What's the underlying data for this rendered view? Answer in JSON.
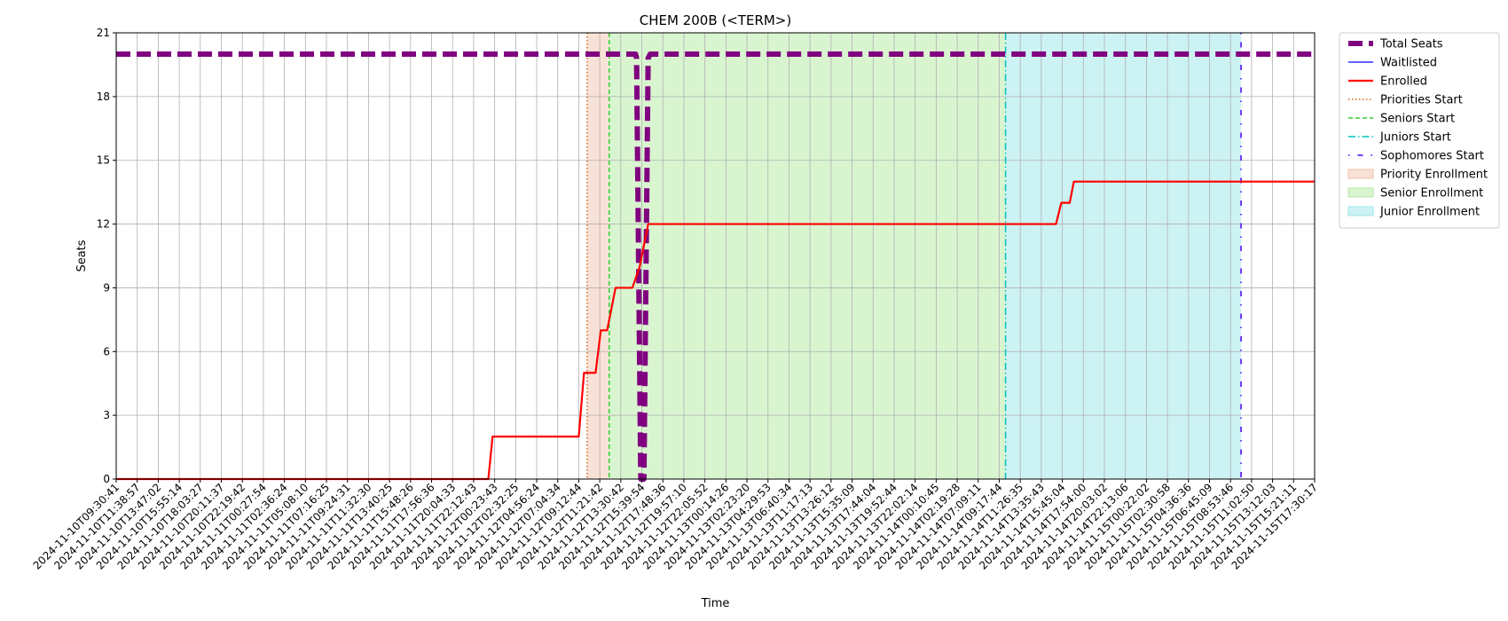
{
  "chart_data": {
    "type": "line",
    "title": "CHEM 200B (<TERM>)",
    "xlabel": "Time",
    "ylabel": "Seats",
    "ylim": [
      0,
      21
    ],
    "yticks": [
      0,
      3,
      6,
      9,
      12,
      15,
      18,
      21
    ],
    "grid": true,
    "legend_position": "outside upper right",
    "categories": [
      "2024-11-10T09:30:41",
      "2024-11-10T11:38:57",
      "2024-11-10T13:47:02",
      "2024-11-10T15:55:14",
      "2024-11-10T18:03:27",
      "2024-11-10T20:11:37",
      "2024-11-10T22:19:42",
      "2024-11-11T00:27:54",
      "2024-11-11T02:36:24",
      "2024-11-11T05:08:10",
      "2024-11-11T07:16:25",
      "2024-11-11T09:24:31",
      "2024-11-11T11:32:30",
      "2024-11-11T13:40:25",
      "2024-11-11T15:48:26",
      "2024-11-11T17:56:36",
      "2024-11-11T20:04:33",
      "2024-11-11T22:12:43",
      "2024-11-12T00:23:43",
      "2024-11-12T02:32:25",
      "2024-11-12T04:56:24",
      "2024-11-12T07:04:34",
      "2024-11-12T09:12:44",
      "2024-11-12T11:21:42",
      "2024-11-12T13:30:42",
      "2024-11-12T15:39:54",
      "2024-11-12T17:48:36",
      "2024-11-12T19:57:10",
      "2024-11-12T22:05:52",
      "2024-11-13T00:14:26",
      "2024-11-13T02:23:20",
      "2024-11-13T04:29:53",
      "2024-11-13T06:40:34",
      "2024-11-13T11:17:13",
      "2024-11-13T13:26:12",
      "2024-11-13T15:35:09",
      "2024-11-13T17:44:04",
      "2024-11-13T19:52:44",
      "2024-11-13T22:02:14",
      "2024-11-14T00:10:45",
      "2024-11-14T02:19:28",
      "2024-11-14T07:09:11",
      "2024-11-14T09:17:44",
      "2024-11-14T11:26:35",
      "2024-11-14T13:35:43",
      "2024-11-14T15:45:04",
      "2024-11-14T17:54:00",
      "2024-11-14T20:03:02",
      "2024-11-14T22:13:06",
      "2024-11-15T00:22:02",
      "2024-11-15T02:30:58",
      "2024-11-15T04:36:36",
      "2024-11-15T06:45:09",
      "2024-11-15T08:53:46",
      "2024-11-15T11:02:50",
      "2024-11-15T13:12:03",
      "2024-11-15T15:21:11",
      "2024-11-15T17:30:17"
    ],
    "series": [
      {
        "name": "Total Seats",
        "color": "#800080",
        "style": "dashed",
        "points": [
          [
            0,
            20
          ],
          [
            24.7,
            20
          ],
          [
            24.75,
            19.8
          ],
          [
            24.95,
            0
          ],
          [
            25.1,
            0
          ],
          [
            25.3,
            19.8
          ],
          [
            25.4,
            20
          ],
          [
            57,
            20
          ]
        ]
      },
      {
        "name": "Waitlisted",
        "color": "#0000ff",
        "style": "solid",
        "points": []
      },
      {
        "name": "Enrolled",
        "color": "#ff0000",
        "style": "solid",
        "points": [
          [
            0,
            0
          ],
          [
            17.7,
            0
          ],
          [
            17.9,
            2
          ],
          [
            22.0,
            2
          ],
          [
            22.25,
            5
          ],
          [
            22.8,
            5
          ],
          [
            23.05,
            7
          ],
          [
            23.35,
            7
          ],
          [
            23.75,
            9
          ],
          [
            24.55,
            9
          ],
          [
            24.9,
            10
          ],
          [
            25.3,
            12
          ],
          [
            25.6,
            12
          ],
          [
            44.7,
            12
          ],
          [
            44.95,
            13
          ],
          [
            45.35,
            13
          ],
          [
            45.55,
            14
          ],
          [
            57,
            14
          ]
        ]
      }
    ],
    "vertical_lines": [
      {
        "name": "Priorities Start",
        "x": 22.4,
        "color": "#d2691e",
        "style": "dotted"
      },
      {
        "name": "Seniors Start",
        "x": 23.45,
        "color": "#32cd32",
        "style": "dashed"
      },
      {
        "name": "Juniors Start",
        "x": 42.3,
        "color": "#00c2c2",
        "style": "dashdot"
      },
      {
        "name": "Sophomores Start",
        "x": 53.5,
        "color": "#4b00ff",
        "style": "loosely-dashdot"
      }
    ],
    "spans": [
      {
        "name": "Priority Enrollment",
        "x_start": 22.4,
        "x_end": 23.45,
        "color": "#f8e1d6",
        "border": "#f0c2a8"
      },
      {
        "name": "Senior Enrollment",
        "x_start": 23.45,
        "x_end": 42.3,
        "color": "#d9f5d0",
        "border": "#b6e8a6"
      },
      {
        "name": "Junior Enrollment",
        "x_start": 42.3,
        "x_end": 53.5,
        "color": "#cdf2f4",
        "border": "#9ee5ea"
      }
    ]
  }
}
